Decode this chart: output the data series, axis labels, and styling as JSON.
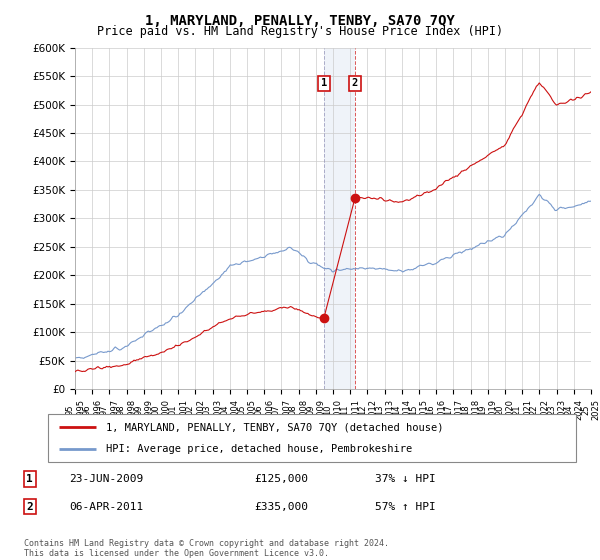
{
  "title": "1, MARYLAND, PENALLY, TENBY, SA70 7QY",
  "subtitle": "Price paid vs. HM Land Registry's House Price Index (HPI)",
  "ylim": [
    0,
    600000
  ],
  "yticks": [
    0,
    50000,
    100000,
    150000,
    200000,
    250000,
    300000,
    350000,
    400000,
    450000,
    500000,
    550000,
    600000
  ],
  "ytick_labels": [
    "£0",
    "£50K",
    "£100K",
    "£150K",
    "£200K",
    "£250K",
    "£300K",
    "£350K",
    "£400K",
    "£450K",
    "£500K",
    "£550K",
    "£600K"
  ],
  "hpi_color": "#7799cc",
  "price_color": "#cc1111",
  "sale1_x": 2009.47,
  "sale1_price": 125000,
  "sale2_x": 2011.27,
  "sale2_price": 335000,
  "legend_line1": "1, MARYLAND, PENALLY, TENBY, SA70 7QY (detached house)",
  "legend_line2": "HPI: Average price, detached house, Pembrokeshire",
  "footer": "Contains HM Land Registry data © Crown copyright and database right 2024.\nThis data is licensed under the Open Government Licence v3.0.",
  "background_color": "#ffffff",
  "grid_color": "#cccccc",
  "shade_color": "#ccd8ee"
}
